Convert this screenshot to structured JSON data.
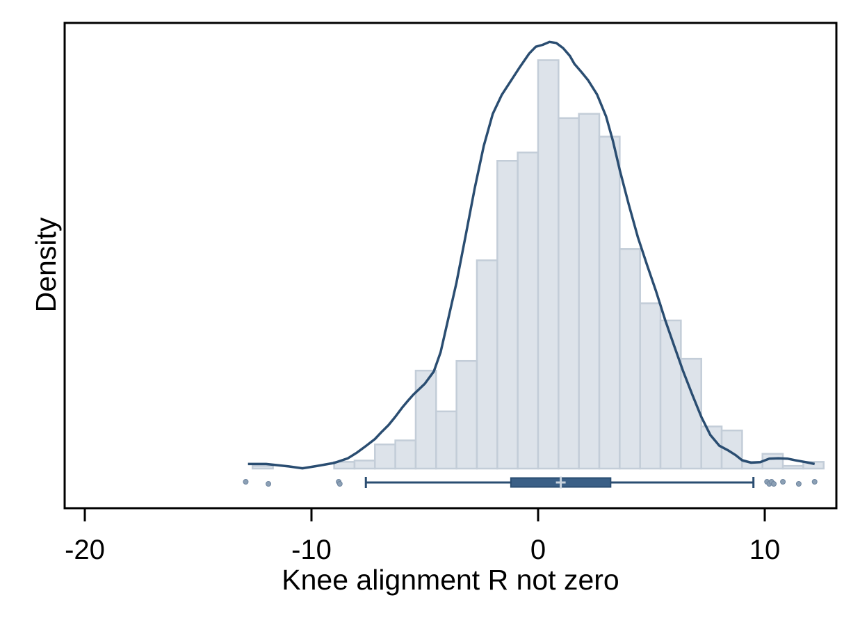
{
  "chart_data": {
    "type": "histogram",
    "title": "",
    "xlabel": "Knee alignment R not zero",
    "ylabel": "Density",
    "xlim": [
      -21,
      13
    ],
    "x_ticks": [
      -20,
      -10,
      0,
      10
    ],
    "x_tick_labels": [
      "-20",
      "-10",
      "0",
      "10"
    ],
    "y_ticks_shown": false,
    "grid": false,
    "legend": "none",
    "colors": {
      "bar_fill": "#dde3ea",
      "bar_edge": "#c3cdd8",
      "kde_line": "#2a4d71",
      "box": "#3a5f86",
      "outlier": "#8ca0b5",
      "axis": "#000000"
    },
    "histogram": {
      "bin_width": 0.9,
      "bins": [
        {
          "x0": -12.6,
          "x1": -11.7,
          "density": 0.001
        },
        {
          "x0": -9.0,
          "x1": -8.1,
          "density": 0.0025
        },
        {
          "x0": -8.1,
          "x1": -7.2,
          "density": 0.003
        },
        {
          "x0": -7.2,
          "x1": -6.3,
          "density": 0.009
        },
        {
          "x0": -6.3,
          "x1": -5.4,
          "density": 0.0105
        },
        {
          "x0": -5.4,
          "x1": -4.5,
          "density": 0.0365
        },
        {
          "x0": -4.5,
          "x1": -3.6,
          "density": 0.0213
        },
        {
          "x0": -3.6,
          "x1": -2.7,
          "density": 0.0401
        },
        {
          "x0": -2.7,
          "x1": -1.8,
          "density": 0.0776
        },
        {
          "x0": -1.8,
          "x1": -0.9,
          "density": 0.1147
        },
        {
          "x0": -0.9,
          "x1": 0.0,
          "density": 0.1178
        },
        {
          "x0": 0.0,
          "x1": 0.9,
          "density": 0.1522
        },
        {
          "x0": 0.9,
          "x1": 1.8,
          "density": 0.1306
        },
        {
          "x0": 1.8,
          "x1": 2.7,
          "density": 0.1322
        },
        {
          "x0": 2.7,
          "x1": 3.6,
          "density": 0.1237
        },
        {
          "x0": 3.6,
          "x1": 4.5,
          "density": 0.0818
        },
        {
          "x0": 4.5,
          "x1": 5.4,
          "density": 0.0616
        },
        {
          "x0": 5.4,
          "x1": 6.3,
          "density": 0.0552
        },
        {
          "x0": 6.3,
          "x1": 7.2,
          "density": 0.0409
        },
        {
          "x0": 7.2,
          "x1": 8.1,
          "density": 0.0157
        },
        {
          "x0": 8.1,
          "x1": 9.0,
          "density": 0.0142
        },
        {
          "x0": 9.0,
          "x1": 9.9,
          "density": 0.0025
        },
        {
          "x0": 9.9,
          "x1": 10.8,
          "density": 0.0055
        },
        {
          "x0": 10.8,
          "x1": 11.7,
          "density": 0.001
        },
        {
          "x0": 11.7,
          "x1": 12.6,
          "density": 0.0025
        }
      ]
    },
    "kde": {
      "x": [
        -12.8,
        -12.0,
        -11.0,
        -10.4,
        -9.8,
        -9.0,
        -8.4,
        -8.0,
        -7.6,
        -7.2,
        -6.9,
        -6.6,
        -6.3,
        -6.0,
        -5.7,
        -5.5,
        -5.0,
        -4.6,
        -4.3,
        -4.0,
        -3.6,
        -3.2,
        -2.8,
        -2.4,
        -2.0,
        -1.6,
        -1.2,
        -0.8,
        -0.4,
        -0.1,
        0.2,
        0.5,
        0.8,
        1.1,
        1.4,
        1.6,
        1.9,
        2.2,
        2.6,
        3.0,
        3.3,
        3.6,
        4.0,
        4.4,
        4.8,
        5.2,
        5.6,
        6.0,
        6.4,
        6.8,
        7.2,
        7.6,
        8.0,
        8.4,
        8.7,
        9.0,
        9.4,
        9.8,
        10.2,
        10.6,
        11.0,
        11.4,
        11.8,
        12.2
      ],
      "density": [
        0.0017,
        0.0017,
        0.0008,
        0.0001,
        0.0009,
        0.0021,
        0.0038,
        0.0059,
        0.0084,
        0.011,
        0.0137,
        0.0162,
        0.0193,
        0.0227,
        0.0257,
        0.0276,
        0.0316,
        0.0362,
        0.0434,
        0.0545,
        0.0693,
        0.0867,
        0.1043,
        0.1202,
        0.1322,
        0.1393,
        0.1445,
        0.1497,
        0.1546,
        0.1572,
        0.1579,
        0.159,
        0.1586,
        0.1567,
        0.1538,
        0.1508,
        0.1479,
        0.1448,
        0.1394,
        0.1312,
        0.1221,
        0.1113,
        0.0984,
        0.0863,
        0.076,
        0.0662,
        0.0555,
        0.0458,
        0.0363,
        0.0276,
        0.0193,
        0.0125,
        0.0085,
        0.0067,
        0.0051,
        0.0031,
        0.0022,
        0.0024,
        0.0037,
        0.0038,
        0.0037,
        0.003,
        0.0024,
        0.0017
      ]
    },
    "boxplot": {
      "whisker_low": -7.6,
      "q1": -1.2,
      "median": 1.0,
      "mean": 1.0,
      "q3": 3.2,
      "whisker_high": 9.5,
      "outliers": [
        -12.9,
        -11.9,
        -8.8,
        -8.75,
        10.1,
        10.2,
        10.3,
        10.4,
        10.8,
        11.5,
        12.2
      ]
    }
  }
}
